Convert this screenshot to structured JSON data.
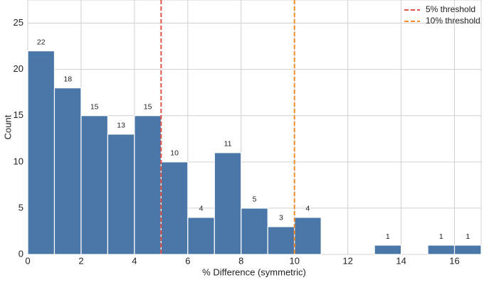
{
  "chart_data": {
    "type": "histogram",
    "xlabel": "% Difference (symmetric)",
    "ylabel": "Count",
    "bins": [
      0,
      1,
      2,
      3,
      4,
      5,
      6,
      7,
      8,
      9,
      10,
      11,
      12,
      13,
      14,
      15,
      16,
      17
    ],
    "values": [
      22,
      18,
      15,
      13,
      15,
      10,
      4,
      11,
      5,
      3,
      4,
      0,
      0,
      1,
      0,
      1,
      1
    ],
    "color": "#4a76a8",
    "xlim": [
      0,
      17
    ],
    "ylim": [
      0,
      27.5
    ],
    "xticks": [
      0,
      2,
      4,
      6,
      8,
      10,
      12,
      14,
      16
    ],
    "yticks": [
      0,
      5,
      10,
      15,
      20,
      25
    ],
    "grid": true,
    "legend": "upper right",
    "thresholds": [
      {
        "name": "5% threshold",
        "value": 5,
        "color": "#e0554a"
      },
      {
        "name": "10% threshold",
        "value": 10,
        "color": "#f28e2b"
      }
    ]
  }
}
